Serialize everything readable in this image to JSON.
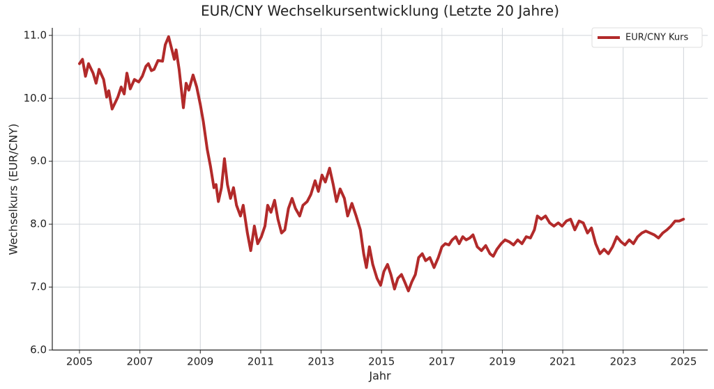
{
  "chart_data": {
    "type": "line",
    "title": "EUR/CNY Wechselkursentwicklung (Letzte 20 Jahre)",
    "xlabel": "Jahr",
    "ylabel": "Wechselkurs (EUR/CNY)",
    "x": [
      2005.0,
      2005.1,
      2005.2,
      2005.3,
      2005.45,
      2005.55,
      2005.65,
      2005.8,
      2005.9,
      2005.97,
      2006.08,
      2006.27,
      2006.38,
      2006.48,
      2006.57,
      2006.68,
      2006.82,
      2006.96,
      2007.08,
      2007.2,
      2007.28,
      2007.38,
      2007.47,
      2007.6,
      2007.75,
      2007.84,
      2007.95,
      2008.05,
      2008.14,
      2008.2,
      2008.3,
      2008.44,
      2008.53,
      2008.62,
      2008.76,
      2008.88,
      2009.0,
      2009.1,
      2009.23,
      2009.34,
      2009.45,
      2009.52,
      2009.6,
      2009.7,
      2009.8,
      2009.9,
      2010.0,
      2010.1,
      2010.2,
      2010.33,
      2010.42,
      2010.56,
      2010.67,
      2010.79,
      2010.9,
      2011.02,
      2011.14,
      2011.23,
      2011.34,
      2011.46,
      2011.57,
      2011.69,
      2011.8,
      2011.92,
      2012.04,
      2012.15,
      2012.29,
      2012.4,
      2012.54,
      2012.66,
      2012.8,
      2012.91,
      2013.03,
      2013.14,
      2013.28,
      2013.4,
      2013.51,
      2013.63,
      2013.77,
      2013.88,
      2014.02,
      2014.16,
      2014.3,
      2014.41,
      2014.5,
      2014.6,
      2014.71,
      2014.85,
      2014.97,
      2015.08,
      2015.2,
      2015.31,
      2015.43,
      2015.54,
      2015.66,
      2015.77,
      2015.89,
      2016.0,
      2016.12,
      2016.23,
      2016.35,
      2016.46,
      2016.6,
      2016.74,
      2016.88,
      2017.0,
      2017.11,
      2017.23,
      2017.34,
      2017.46,
      2017.57,
      2017.69,
      2017.8,
      2017.92,
      2018.03,
      2018.17,
      2018.31,
      2018.45,
      2018.59,
      2018.7,
      2018.82,
      2018.96,
      2019.09,
      2019.23,
      2019.37,
      2019.51,
      2019.65,
      2019.79,
      2019.93,
      2020.06,
      2020.16,
      2020.29,
      2020.43,
      2020.57,
      2020.71,
      2020.85,
      2020.98,
      2021.12,
      2021.26,
      2021.4,
      2021.54,
      2021.68,
      2021.82,
      2021.95,
      2022.09,
      2022.23,
      2022.37,
      2022.51,
      2022.65,
      2022.79,
      2022.93,
      2023.06,
      2023.2,
      2023.34,
      2023.48,
      2023.62,
      2023.75,
      2023.89,
      2024.03,
      2024.17,
      2024.31,
      2024.45,
      2024.58,
      2024.72,
      2024.86,
      2025.0
    ],
    "series": [
      {
        "name": "EUR/CNY Kurs",
        "color": "#b22a2a",
        "values": [
          10.55,
          10.62,
          10.35,
          10.55,
          10.4,
          10.24,
          10.46,
          10.3,
          10.02,
          10.12,
          9.83,
          10.02,
          10.18,
          10.07,
          10.4,
          10.15,
          10.3,
          10.26,
          10.35,
          10.51,
          10.55,
          10.44,
          10.46,
          10.6,
          10.59,
          10.85,
          10.98,
          10.79,
          10.62,
          10.77,
          10.46,
          9.85,
          10.24,
          10.13,
          10.37,
          10.18,
          9.9,
          9.63,
          9.19,
          8.91,
          8.58,
          8.63,
          8.36,
          8.58,
          9.04,
          8.63,
          8.41,
          8.58,
          8.3,
          8.13,
          8.3,
          7.86,
          7.58,
          7.97,
          7.69,
          7.8,
          7.97,
          8.3,
          8.19,
          8.38,
          8.08,
          7.86,
          7.91,
          8.25,
          8.41,
          8.25,
          8.13,
          8.3,
          8.36,
          8.47,
          8.69,
          8.52,
          8.78,
          8.67,
          8.89,
          8.63,
          8.36,
          8.56,
          8.41,
          8.13,
          8.33,
          8.13,
          7.91,
          7.53,
          7.31,
          7.64,
          7.36,
          7.14,
          7.03,
          7.25,
          7.36,
          7.2,
          6.97,
          7.14,
          7.2,
          7.08,
          6.94,
          7.08,
          7.2,
          7.47,
          7.53,
          7.42,
          7.47,
          7.31,
          7.47,
          7.64,
          7.69,
          7.67,
          7.75,
          7.8,
          7.69,
          7.8,
          7.75,
          7.78,
          7.83,
          7.64,
          7.58,
          7.66,
          7.53,
          7.49,
          7.6,
          7.69,
          7.75,
          7.72,
          7.67,
          7.75,
          7.69,
          7.8,
          7.78,
          7.91,
          8.13,
          8.08,
          8.13,
          8.02,
          7.97,
          8.02,
          7.97,
          8.05,
          8.08,
          7.91,
          8.05,
          8.02,
          7.86,
          7.94,
          7.69,
          7.53,
          7.6,
          7.53,
          7.64,
          7.8,
          7.72,
          7.67,
          7.75,
          7.69,
          7.8,
          7.86,
          7.89,
          7.86,
          7.83,
          7.78,
          7.86,
          7.91,
          7.97,
          8.05,
          8.05,
          8.08
        ]
      }
    ],
    "xlim": [
      2004.1,
      2025.8
    ],
    "ylim": [
      6.0,
      11.12
    ],
    "xticks": [
      2005,
      2007,
      2009,
      2011,
      2013,
      2015,
      2017,
      2019,
      2021,
      2023,
      2025
    ],
    "yticks": [
      {
        "value": 6,
        "label": "6.0"
      },
      {
        "value": 7,
        "label": "7.0"
      },
      {
        "value": 8,
        "label": "8.0"
      },
      {
        "value": 9,
        "label": "9.0"
      },
      {
        "value": 10,
        "label": "10.0"
      },
      {
        "value": 11,
        "label": "11.0"
      }
    ],
    "grid": true,
    "legend": "upper right"
  }
}
